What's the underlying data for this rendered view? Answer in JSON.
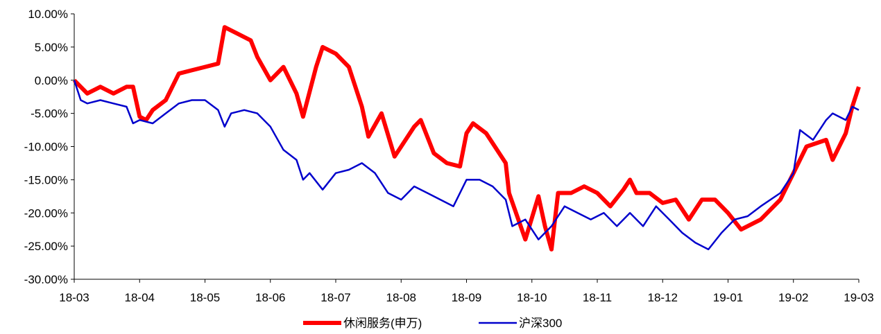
{
  "chart_data": {
    "type": "line",
    "xlim": [
      0,
      12
    ],
    "xticks": [
      {
        "value": 0,
        "label": "18-03"
      },
      {
        "value": 1,
        "label": "18-04"
      },
      {
        "value": 2,
        "label": "18-05"
      },
      {
        "value": 3,
        "label": "18-06"
      },
      {
        "value": 4,
        "label": "18-07"
      },
      {
        "value": 5,
        "label": "18-08"
      },
      {
        "value": 6,
        "label": "18-09"
      },
      {
        "value": 7,
        "label": "18-10"
      },
      {
        "value": 8,
        "label": "18-11"
      },
      {
        "value": 9,
        "label": "18-12"
      },
      {
        "value": 10,
        "label": "19-01"
      },
      {
        "value": 11,
        "label": "19-02"
      },
      {
        "value": 12,
        "label": "19-03"
      }
    ],
    "ylim": [
      -30,
      10
    ],
    "yticks": [
      {
        "value": 10,
        "label": "10.00%"
      },
      {
        "value": 5,
        "label": "5.00%"
      },
      {
        "value": 0,
        "label": "0.00%"
      },
      {
        "value": -5,
        "label": "-5.00%"
      },
      {
        "value": -10,
        "label": "-10.00%"
      },
      {
        "value": -15,
        "label": "-15.00%"
      },
      {
        "value": -20,
        "label": "-20.00%"
      },
      {
        "value": -25,
        "label": "-25.00%"
      },
      {
        "value": -30,
        "label": "-30.00%"
      }
    ],
    "legend": "bottom",
    "series": [
      {
        "name": "休闲服务(申万)",
        "color": "#ff0000",
        "width": 6,
        "x": [
          0,
          0.2,
          0.4,
          0.6,
          0.8,
          0.9,
          1.0,
          1.1,
          1.2,
          1.4,
          1.6,
          1.8,
          2.0,
          2.2,
          2.3,
          2.5,
          2.7,
          2.8,
          3.0,
          3.2,
          3.4,
          3.5,
          3.7,
          3.8,
          4.0,
          4.2,
          4.4,
          4.5,
          4.7,
          4.9,
          5.0,
          5.2,
          5.3,
          5.5,
          5.7,
          5.9,
          6.0,
          6.1,
          6.3,
          6.6,
          6.65,
          6.9,
          7.1,
          7.2,
          7.3,
          7.4,
          7.6,
          7.8,
          8.0,
          8.2,
          8.4,
          8.5,
          8.6,
          8.8,
          9.0,
          9.2,
          9.4,
          9.6,
          9.8,
          10.0,
          10.2,
          10.5,
          10.8,
          11.0,
          11.2,
          11.5,
          11.6,
          11.8,
          11.9,
          12.0
        ],
        "values": [
          0,
          -2,
          -1,
          -2,
          -1,
          -1,
          -5.5,
          -6,
          -4.5,
          -3,
          1,
          1.5,
          2,
          2.5,
          8,
          7,
          6,
          3.5,
          0,
          2,
          -2,
          -5.5,
          2,
          5,
          4,
          2,
          -4,
          -8.5,
          -5,
          -11.5,
          -10,
          -7,
          -6,
          -11,
          -12.5,
          -13,
          -8,
          -6.5,
          -8,
          -12.5,
          -17,
          -24,
          -17.5,
          -22,
          -25.5,
          -17,
          -17,
          -16,
          -17,
          -19,
          -16.5,
          -15,
          -17,
          -17,
          -18.5,
          -18,
          -21,
          -18,
          -18,
          -20,
          -22.5,
          -21,
          -18,
          -14,
          -10,
          -9,
          -12,
          -8,
          -4,
          -1
        ]
      },
      {
        "name": "沪深300",
        "color": "#0000cc",
        "width": 2.5,
        "x": [
          0,
          0.1,
          0.2,
          0.4,
          0.6,
          0.8,
          0.9,
          1.0,
          1.2,
          1.4,
          1.6,
          1.8,
          2.0,
          2.2,
          2.3,
          2.4,
          2.6,
          2.8,
          3.0,
          3.2,
          3.4,
          3.5,
          3.6,
          3.8,
          4.0,
          4.2,
          4.4,
          4.6,
          4.8,
          5.0,
          5.2,
          5.4,
          5.6,
          5.8,
          6.0,
          6.2,
          6.4,
          6.6,
          6.7,
          6.9,
          7.1,
          7.3,
          7.5,
          7.7,
          7.9,
          8.1,
          8.3,
          8.5,
          8.7,
          8.9,
          9.1,
          9.3,
          9.5,
          9.7,
          9.9,
          10.1,
          10.3,
          10.5,
          10.8,
          11.0,
          11.1,
          11.3,
          11.5,
          11.6,
          11.8,
          11.9,
          12.0
        ],
        "values": [
          0,
          -3,
          -3.5,
          -3,
          -3.5,
          -4,
          -6.5,
          -6,
          -6.5,
          -5,
          -3.5,
          -3,
          -3,
          -4.5,
          -7,
          -5,
          -4.5,
          -5,
          -7,
          -10.5,
          -12,
          -15,
          -14,
          -16.5,
          -14,
          -13.5,
          -12.5,
          -14,
          -17,
          -18,
          -16,
          -17,
          -18,
          -19,
          -15,
          -15,
          -16,
          -18,
          -22,
          -21,
          -24,
          -22,
          -19,
          -20,
          -21,
          -20,
          -22,
          -20,
          -22,
          -19,
          -21,
          -23,
          -24.5,
          -25.5,
          -23,
          -21,
          -20.5,
          -19,
          -17,
          -14,
          -7.5,
          -9,
          -6,
          -5,
          -6,
          -4,
          -4.5
        ]
      }
    ]
  }
}
